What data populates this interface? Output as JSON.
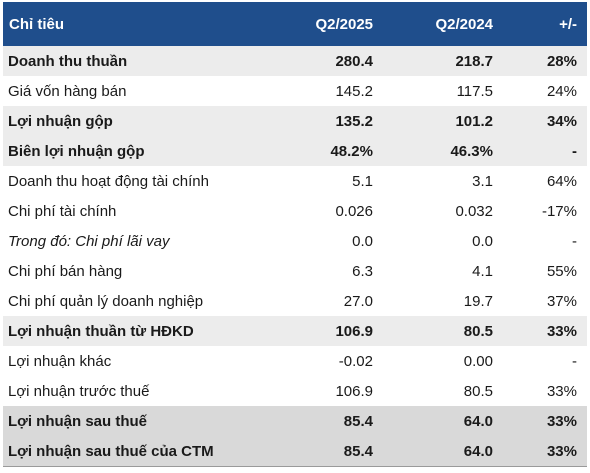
{
  "header": {
    "label": "Chỉ tiêu",
    "q2_2025": "Q2/2025",
    "q2_2024": "Q2/2024",
    "change": "+/-"
  },
  "rows": [
    {
      "label": "Doanh thu thuần",
      "q2_2025": "280.4",
      "q2_2024": "218.7",
      "change": "28%"
    },
    {
      "label": "Giá vốn hàng bán",
      "q2_2025": "145.2",
      "q2_2024": "117.5",
      "change": "24%"
    },
    {
      "label": "Lợi nhuận gộp",
      "q2_2025": "135.2",
      "q2_2024": "101.2",
      "change": "34%"
    },
    {
      "label": "Biên lợi nhuận gộp",
      "q2_2025": "48.2%",
      "q2_2024": "46.3%",
      "change": "-"
    },
    {
      "label": "Doanh thu hoạt động tài chính",
      "q2_2025": "5.1",
      "q2_2024": "3.1",
      "change": "64%"
    },
    {
      "label": "Chi phí tài chính",
      "q2_2025": "0.026",
      "q2_2024": "0.032",
      "change": "-17%"
    },
    {
      "label": "Trong đó: Chi phí lãi vay",
      "q2_2025": "0.0",
      "q2_2024": "0.0",
      "change": "-"
    },
    {
      "label": "Chi phí bán hàng",
      "q2_2025": "6.3",
      "q2_2024": "4.1",
      "change": "55%"
    },
    {
      "label": "Chi phí quản lý doanh nghiệp",
      "q2_2025": "27.0",
      "q2_2024": "19.7",
      "change": "37%"
    },
    {
      "label": "Lợi nhuận thuần từ HĐKD",
      "q2_2025": "106.9",
      "q2_2024": "80.5",
      "change": "33%"
    },
    {
      "label": "Lợi nhuận khác",
      "q2_2025": "-0.02",
      "q2_2024": "0.00",
      "change": "-"
    },
    {
      "label": "Lợi nhuận trước thuế",
      "q2_2025": "106.9",
      "q2_2024": "80.5",
      "change": "33%"
    },
    {
      "label": "Lợi nhuận sau thuế",
      "q2_2025": "85.4",
      "q2_2024": "64.0",
      "change": "33%"
    },
    {
      "label": "Lợi nhuận sau thuế của CTM",
      "q2_2025": "85.4",
      "q2_2024": "64.0",
      "change": "33%"
    }
  ],
  "colors": {
    "header_bg": "#1f4e8c",
    "header_text": "#ffffff",
    "shaded_row": "#ececec",
    "dark_shaded_row": "#d9d9d9"
  }
}
